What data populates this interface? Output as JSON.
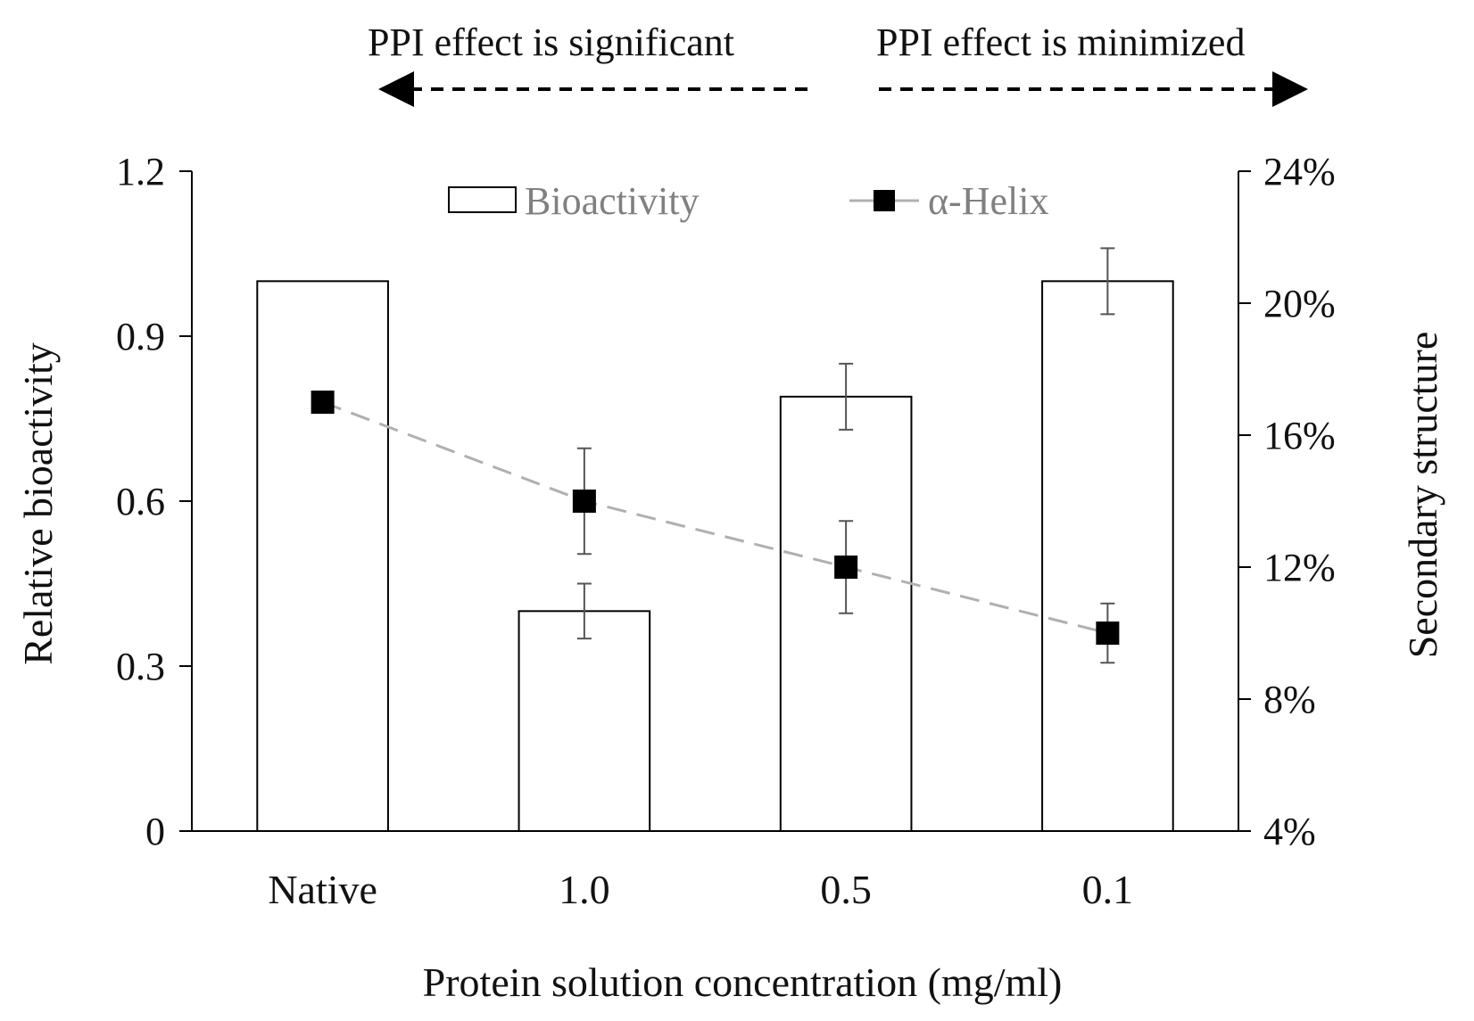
{
  "chart_data": {
    "type": "bar",
    "categories": [
      "Native",
      "1.0",
      "0.5",
      "0.1"
    ],
    "xlabel": "Protein solution concentration (mg/ml)",
    "ylabel": "Relative bioactivity",
    "y2label": "Secondary structure",
    "ylim": [
      0,
      1.2
    ],
    "yticks": [
      0,
      0.3,
      0.6,
      0.9,
      1.2
    ],
    "ytick_labels": [
      "0",
      "0.3",
      "0.6",
      "0.9",
      "1.2"
    ],
    "y2lim": [
      4,
      24
    ],
    "y2ticks": [
      4,
      8,
      12,
      16,
      20,
      24
    ],
    "y2tick_labels": [
      "4%",
      "8%",
      "12%",
      "16%",
      "20%",
      "24%"
    ],
    "series": [
      {
        "name": "Bioactivity",
        "kind": "bar",
        "axis": "left",
        "values": [
          1.0,
          0.4,
          0.79,
          1.0
        ],
        "errors": [
          null,
          0.05,
          0.06,
          0.06
        ],
        "fill": "#ffffff",
        "edge": "#000000"
      },
      {
        "name": "α-Helix",
        "kind": "line",
        "axis": "right",
        "values": [
          17,
          14,
          12,
          10
        ],
        "errors": [
          0.3,
          1.6,
          1.4,
          0.9
        ],
        "line_color": "#b0b0b0",
        "line_style": "dashed",
        "marker": "square",
        "marker_color": "#000000"
      }
    ],
    "legend": {
      "placement": "top-center"
    },
    "annotations": [
      {
        "text": "PPI effect is significant",
        "arrow": "left"
      },
      {
        "text": "PPI effect is minimized",
        "arrow": "right"
      }
    ],
    "grid": false
  }
}
